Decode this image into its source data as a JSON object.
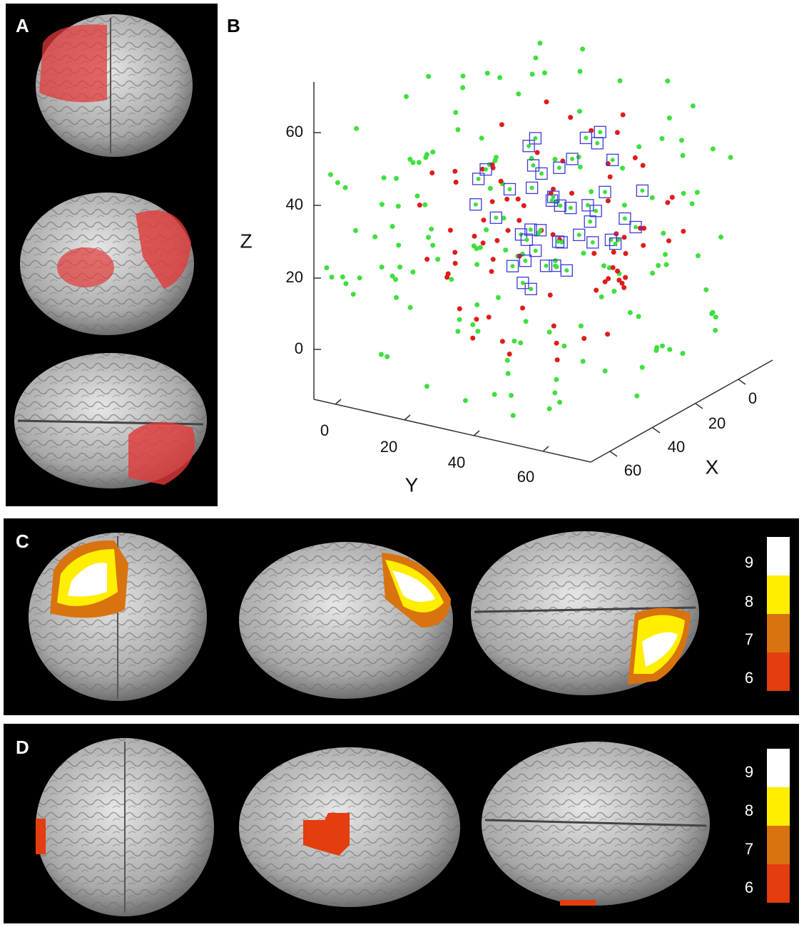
{
  "panels": {
    "A": {
      "label": "A"
    },
    "B": {
      "label": "B",
      "z_axis": {
        "label": "Z",
        "ticks": [
          "0",
          "20",
          "40",
          "60"
        ]
      },
      "y_axis": {
        "label": "Y",
        "ticks": [
          "0",
          "20",
          "40",
          "60"
        ]
      },
      "x_axis": {
        "label": "X",
        "ticks": [
          "0",
          "20",
          "40",
          "60"
        ]
      }
    },
    "C": {
      "label": "C",
      "colorbar": [
        "9",
        "8",
        "7",
        "6"
      ]
    },
    "D": {
      "label": "D",
      "colorbar": [
        "9",
        "8",
        "7",
        "6"
      ]
    }
  }
}
